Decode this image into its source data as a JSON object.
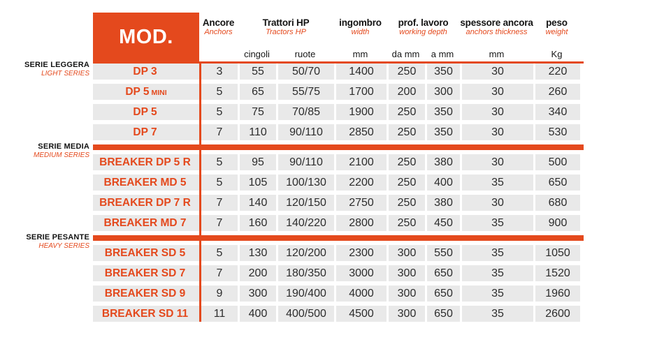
{
  "colors": {
    "accent": "#e4491d",
    "cell_background": "#e9e9e9"
  },
  "header": {
    "mod_label": "MOD.",
    "columns": [
      {
        "it": "Ancore",
        "en": "Anchors"
      },
      {
        "it": "Trattori HP",
        "en": "Tractors HP"
      },
      {
        "it": "ingombro",
        "en": "width"
      },
      {
        "it": "prof. lavoro",
        "en": "working depth"
      },
      {
        "it": "spessore ancora",
        "en": "anchors thickness"
      },
      {
        "it": "peso",
        "en": "weight"
      }
    ],
    "units": [
      "cingoli",
      "ruote",
      "mm",
      "da mm",
      "a mm",
      "mm",
      "Kg"
    ]
  },
  "groups": [
    {
      "label_it": "SERIE LEGGERA",
      "label_en": "LIGHT SERIES",
      "rows": [
        {
          "model": "DP 3",
          "values": [
            "3",
            "55",
            "50/70",
            "1400",
            "250",
            "350",
            "30",
            "220"
          ]
        },
        {
          "model": "DP 5",
          "model_suffix": "MINI",
          "values": [
            "5",
            "65",
            "55/75",
            "1700",
            "200",
            "300",
            "30",
            "260"
          ]
        },
        {
          "model": "DP 5",
          "values": [
            "5",
            "75",
            "70/85",
            "1900",
            "250",
            "350",
            "30",
            "340"
          ]
        },
        {
          "model": "DP 7",
          "values": [
            "7",
            "110",
            "90/110",
            "2850",
            "250",
            "350",
            "30",
            "530"
          ]
        }
      ]
    },
    {
      "label_it": "SERIE MEDIA",
      "label_en": "MEDIUM SERIES",
      "rows": [
        {
          "model": "BREAKER DP 5 R",
          "values": [
            "5",
            "95",
            "90/110",
            "2100",
            "250",
            "380",
            "30",
            "500"
          ]
        },
        {
          "model": "BREAKER MD 5",
          "values": [
            "5",
            "105",
            "100/130",
            "2200",
            "250",
            "400",
            "35",
            "650"
          ]
        },
        {
          "model": "BREAKER DP 7 R",
          "values": [
            "7",
            "140",
            "120/150",
            "2750",
            "250",
            "380",
            "30",
            "680"
          ]
        },
        {
          "model": "BREAKER MD 7",
          "values": [
            "7",
            "160",
            "140/220",
            "2800",
            "250",
            "450",
            "35",
            "900"
          ]
        }
      ]
    },
    {
      "label_it": "SERIE PESANTE",
      "label_en": "HEAVY SERIES",
      "rows": [
        {
          "model": "BREAKER SD 5",
          "values": [
            "5",
            "130",
            "120/200",
            "2300",
            "300",
            "550",
            "35",
            "1050"
          ]
        },
        {
          "model": "BREAKER SD 7",
          "values": [
            "7",
            "200",
            "180/350",
            "3000",
            "300",
            "650",
            "35",
            "1520"
          ]
        },
        {
          "model": "BREAKER SD 9",
          "values": [
            "9",
            "300",
            "190/400",
            "4000",
            "300",
            "650",
            "35",
            "1960"
          ]
        },
        {
          "model": "BREAKER SD 11",
          "values": [
            "11",
            "400",
            "400/500",
            "4500",
            "300",
            "650",
            "35",
            "2600"
          ]
        }
      ]
    }
  ]
}
